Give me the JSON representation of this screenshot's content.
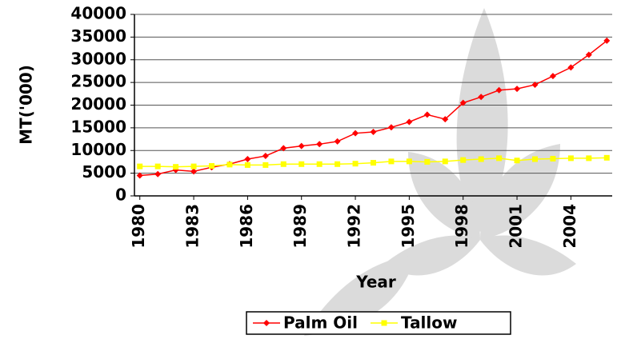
{
  "chart_data": {
    "type": "line",
    "y_label": "MT('000)",
    "x_label": "Year",
    "x": [
      1980,
      1981,
      1982,
      1983,
      1984,
      1985,
      1986,
      1987,
      1988,
      1989,
      1990,
      1991,
      1992,
      1993,
      1994,
      1995,
      1996,
      1997,
      1998,
      1999,
      2000,
      2001,
      2002,
      2003,
      2004,
      2005,
      2006
    ],
    "series": [
      {
        "name": "Palm Oil",
        "color": "#ff0000",
        "marker": "diamond",
        "values": [
          4500,
          4800,
          5700,
          5400,
          6300,
          7000,
          8100,
          8800,
          10500,
          11000,
          11400,
          12000,
          13800,
          14100,
          15100,
          16300,
          17900,
          16900,
          20500,
          21800,
          23300,
          23600,
          24500,
          26400,
          28300,
          31100,
          34200
        ]
      },
      {
        "name": "Tallow",
        "color": "#ffff00",
        "marker": "square",
        "values": [
          6500,
          6500,
          6400,
          6500,
          6600,
          6900,
          6800,
          6800,
          7000,
          7000,
          7000,
          7000,
          7100,
          7300,
          7600,
          7600,
          7500,
          7600,
          7900,
          8100,
          8300,
          7800,
          8100,
          8200,
          8300,
          8300,
          8400
        ]
      }
    ],
    "xlim": [
      1979.7,
      2006.3
    ],
    "xticks": [
      1980,
      1983,
      1986,
      1989,
      1992,
      1995,
      1998,
      2001,
      2004
    ],
    "ylim": [
      0,
      40000
    ],
    "yticks": [
      0,
      5000,
      10000,
      15000,
      20000,
      25000,
      30000,
      35000,
      40000
    ],
    "grid": true,
    "legend": "bottom"
  }
}
